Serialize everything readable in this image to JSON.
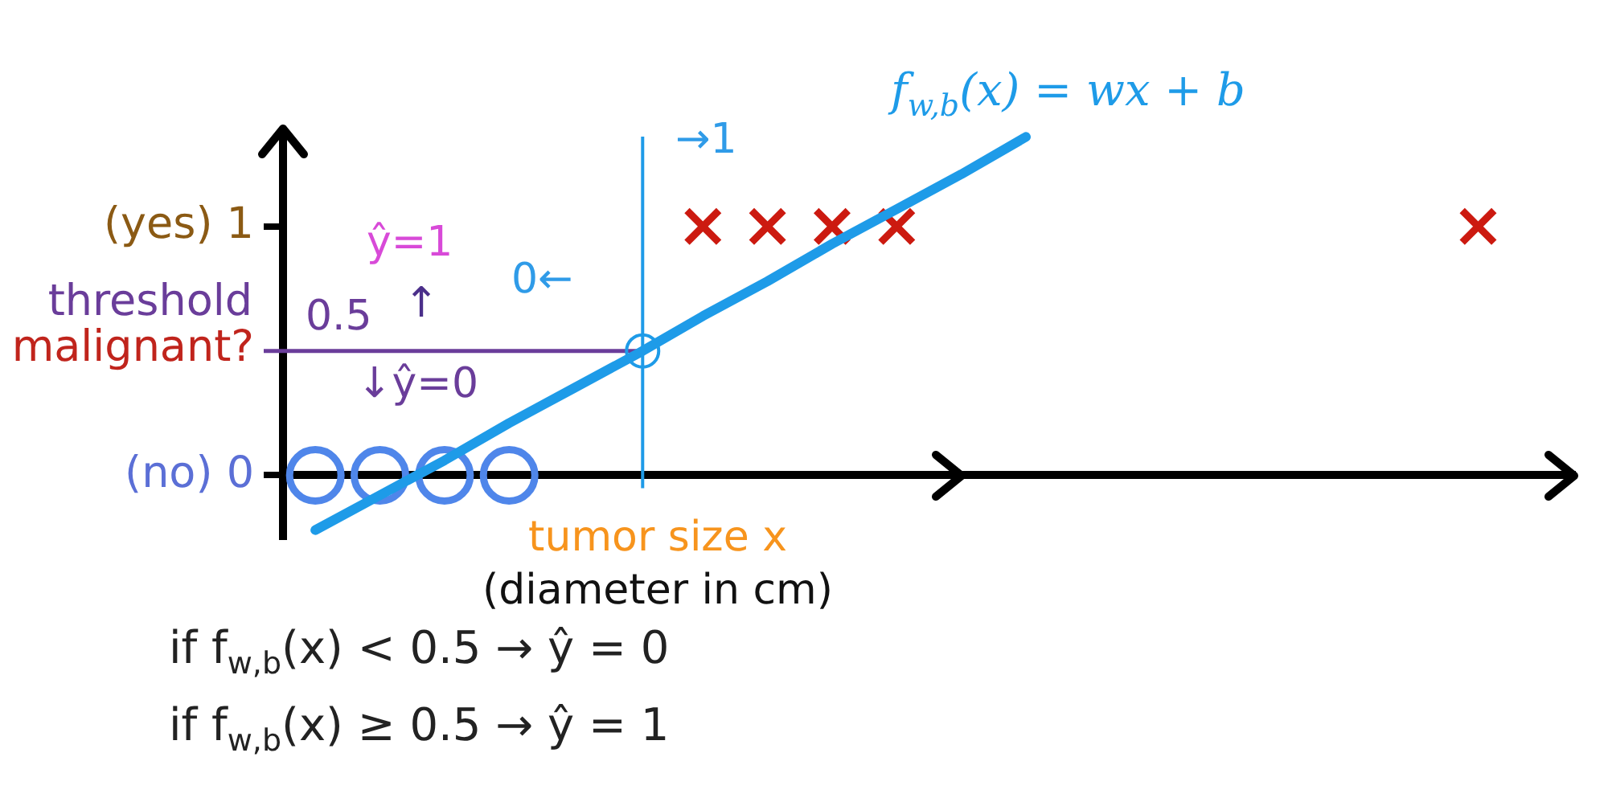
{
  "chart_data": {
    "type": "scatter",
    "xlabel": "tumor size x\n(diameter in cm)",
    "ylabel": "malignant?",
    "categories": [
      null,
      null,
      null,
      null,
      null,
      null,
      null,
      null,
      null,
      null,
      null,
      null,
      null,
      null,
      null,
      null,
      null,
      null,
      null,
      null
    ],
    "series": [
      {
        "marker": "circle",
        "color": "#4f86ea",
        "values": [
          0,
          0,
          0,
          0,
          null,
          null,
          null,
          null,
          null,
          null,
          null,
          null,
          null,
          null,
          null,
          null,
          null,
          null,
          null,
          null
        ]
      },
      {
        "marker": "cross",
        "color": "#cc1a10",
        "values": [
          null,
          null,
          null,
          null,
          null,
          null,
          1,
          1,
          1,
          1,
          null,
          null,
          null,
          null,
          null,
          null,
          null,
          null,
          1,
          null
        ]
      },
      {
        "type": "line",
        "name": "f$_{w,b}$(x) = wx + b",
        "color": "#1e9be8",
        "values": [
          -0.22,
          -0.08,
          0.06,
          0.21,
          0.35,
          0.49,
          0.64,
          0.78,
          0.93,
          1.07,
          1.21,
          1.36,
          null,
          null,
          null,
          null,
          null,
          null,
          null,
          null
        ]
      }
    ],
    "ylim": [
      -0.26,
      1.4
    ],
    "yticks": [
      {
        "value": 0,
        "label": "(no) 0"
      },
      {
        "value": 1,
        "label": "(yes) 1"
      }
    ],
    "tick_labels": "y",
    "ref_lines": [
      {
        "axis": "y",
        "value": 0.5,
        "label": "0.5",
        "color": "#6a3d9a"
      }
    ],
    "annotations": [
      "threshold",
      "ŷ=1",
      "↑",
      "↓ŷ=0",
      "0←",
      "→1",
      "if f$_{w,b}$(x) < 0.5 → ŷ = 0",
      "if f$_{w,b}$(x) ≥ 0.5 → ŷ = 1"
    ]
  }
}
